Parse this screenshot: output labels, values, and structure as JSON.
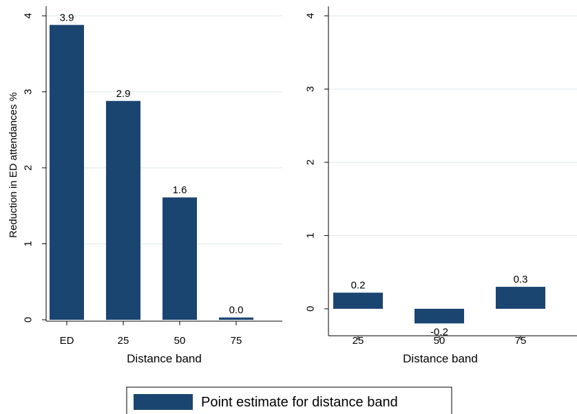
{
  "chart_data": [
    {
      "type": "bar",
      "panel": "left",
      "title": "",
      "xlabel": "Distance band",
      "ylabel": "Reduction in ED attendances %",
      "categories": [
        "ED",
        "25",
        "50",
        "75"
      ],
      "values": [
        3.88,
        2.88,
        1.61,
        0.03
      ],
      "data_labels": [
        "3.9",
        "2.9",
        "1.6",
        "0.0"
      ],
      "yticks": [
        "0",
        "1",
        "2",
        "3",
        "4"
      ],
      "ylim": [
        0,
        4.1
      ],
      "grid": true,
      "bar_color": "#1a4570"
    },
    {
      "type": "bar",
      "panel": "right",
      "title": "",
      "xlabel": "Distance band",
      "ylabel": "",
      "categories": [
        "25",
        "50",
        "75"
      ],
      "values": [
        0.22,
        -0.2,
        0.3
      ],
      "data_labels": [
        "0.2",
        "-0.2",
        "0.3"
      ],
      "yticks": [
        "0",
        "1",
        "2",
        "3",
        "4"
      ],
      "ylim": [
        -0.35,
        4.1
      ],
      "grid": true,
      "bar_color": "#1a4570"
    }
  ],
  "legend": {
    "label": "Point estimate for distance band",
    "color": "#1a4570",
    "placement": "bottom"
  },
  "colors": {
    "grid": "#e3ecef",
    "axis": "#000000"
  }
}
